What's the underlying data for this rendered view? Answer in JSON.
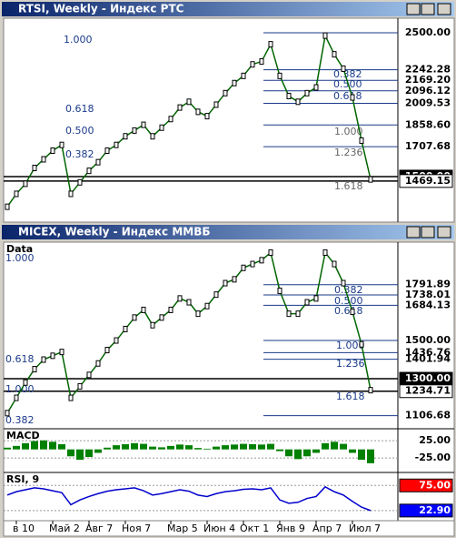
{
  "chart_data": [
    {
      "type": "line",
      "title": "RTSI, Weekly - Индекс РТС",
      "color": "#006400",
      "values": [
        1290,
        1380,
        1450,
        1560,
        1620,
        1680,
        1720,
        1380,
        1460,
        1540,
        1600,
        1680,
        1720,
        1780,
        1820,
        1860,
        1780,
        1840,
        1900,
        1980,
        2020,
        1950,
        1920,
        2000,
        2080,
        2150,
        2200,
        2280,
        2300,
        2420,
        2200,
        2060,
        2020,
        2080,
        2120,
        2480,
        2350,
        2250,
        2050,
        1750,
        1480
      ],
      "ylim": [
        1196,
        2601
      ],
      "yticks": [
        {
          "value": 2500,
          "label": "2500.00"
        },
        {
          "value": 2242.28,
          "label": "2242.28"
        },
        {
          "value": 2169.2,
          "label": "2169.20"
        },
        {
          "value": 2096.12,
          "label": "2096.12"
        },
        {
          "value": 2009.53,
          "label": "2009.53"
        },
        {
          "value": 1858.6,
          "label": "1858.60"
        },
        {
          "value": 1707.68,
          "label": "1707.68"
        },
        {
          "value": 1500,
          "label": "1500.00",
          "fill": "#000000"
        },
        {
          "value": 1469.15,
          "label": "1469.15",
          "fill": "#ffffff"
        }
      ],
      "annotations": [
        "1.000",
        "0.618",
        "0.500",
        "0.382",
        "0.382",
        "0.500",
        "0.618",
        "1.000",
        "1.236",
        "1.618"
      ]
    },
    {
      "type": "line",
      "title": "MICEX, Weekly - Индекс ММВБ",
      "label": "Data",
      "color": "#006400",
      "categories": [
        null,
        "в 10",
        null,
        null,
        null,
        "Май 2",
        null,
        null,
        null,
        "Авг 7",
        null,
        null,
        null,
        "Ноя 7",
        null,
        null,
        null,
        null,
        "Мар 5",
        null,
        null,
        null,
        "Июн 4",
        null,
        null,
        null,
        "Окт 1",
        null,
        null,
        null,
        "Янв 9",
        null,
        null,
        null,
        "Апр 7",
        null,
        null,
        null,
        "Июл 7",
        null,
        null
      ],
      "values": [
        1120,
        1200,
        1280,
        1350,
        1400,
        1420,
        1440,
        1200,
        1260,
        1320,
        1380,
        1450,
        1500,
        1560,
        1620,
        1660,
        1580,
        1620,
        1660,
        1720,
        1700,
        1640,
        1680,
        1740,
        1800,
        1820,
        1880,
        1900,
        1920,
        1960,
        1760,
        1640,
        1640,
        1700,
        1720,
        1960,
        1900,
        1800,
        1650,
        1480,
        1240
      ],
      "ylim": [
        1043,
        2005
      ],
      "yticks": [
        {
          "value": 1791.89,
          "label": "1791.89"
        },
        {
          "value": 1738.01,
          "label": "1738.01"
        },
        {
          "value": 1684.13,
          "label": "1684.13"
        },
        {
          "value": 1500,
          "label": "1500.00"
        },
        {
          "value": 1436.76,
          "label": "1436.76"
        },
        {
          "value": 1401.94,
          "label": "1401.94"
        },
        {
          "value": 1300,
          "label": "1300.00",
          "fill": "#000000"
        },
        {
          "value": 1234.71,
          "label": "1234.71",
          "fill": "#ffffff"
        },
        {
          "value": 1106.68,
          "label": "1106.68"
        }
      ],
      "annotations": [
        "1.000",
        "0.618",
        "1.000",
        "0.382",
        "0.382",
        "0.500",
        "0.618",
        "1.000",
        "1.236",
        "1.618"
      ]
    },
    {
      "type": "bar",
      "title": "MACD",
      "color": "#008000",
      "values": [
        5,
        10,
        18,
        24,
        26,
        22,
        15,
        -20,
        -30,
        -22,
        -10,
        5,
        12,
        15,
        18,
        16,
        8,
        6,
        10,
        14,
        12,
        4,
        2,
        8,
        12,
        14,
        16,
        15,
        14,
        16,
        -5,
        -20,
        -28,
        -20,
        -10,
        18,
        22,
        16,
        -10,
        -30,
        -40
      ],
      "ylim": [
        -64,
        57
      ],
      "yticks": [
        {
          "value": 25,
          "label": "25.00"
        },
        {
          "value": -25,
          "label": "-25.00"
        }
      ]
    },
    {
      "type": "line",
      "title": "RSI, 9",
      "color": "#0000cc",
      "values": [
        55,
        62,
        66,
        70,
        68,
        64,
        60,
        35,
        45,
        52,
        58,
        63,
        66,
        68,
        70,
        64,
        55,
        58,
        62,
        66,
        63,
        55,
        52,
        58,
        62,
        64,
        67,
        68,
        66,
        70,
        45,
        38,
        40,
        48,
        52,
        72,
        62,
        55,
        42,
        30,
        22.9
      ],
      "ylim": [
        0,
        100
      ],
      "yticks": [
        {
          "value": 75,
          "label": "75.00",
          "fill": "#ff0000"
        },
        {
          "value": 22.9,
          "label": "22.90",
          "fill": "#0000ff"
        }
      ]
    }
  ]
}
